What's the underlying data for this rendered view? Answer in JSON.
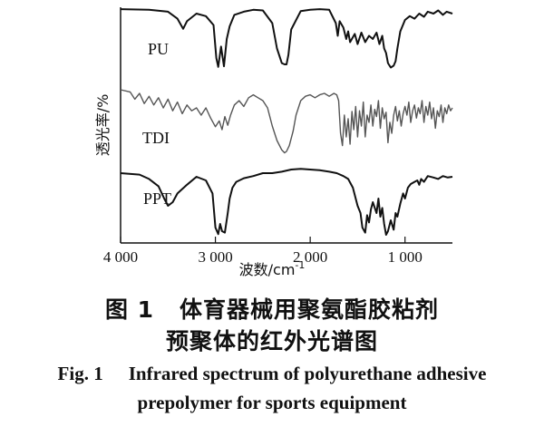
{
  "chart_data": {
    "type": "line",
    "xlabel": "波数/cm",
    "xlabel_sup": "-1",
    "ylabel": "透光率/%",
    "xlim": [
      4000,
      500
    ],
    "x_ticks": [
      4000,
      3000,
      2000,
      1000
    ],
    "x_tick_labels": [
      "4 000",
      "3 000",
      "2 000",
      "1 000"
    ],
    "y_units": "relative transmittance (offset, no scale)",
    "grid": false,
    "legend": "labels inline left of each trace",
    "series": [
      {
        "name": "PU",
        "x": [
          4000,
          3700,
          3500,
          3400,
          3340,
          3300,
          3200,
          3100,
          3020,
          2990,
          2970,
          2940,
          2910,
          2880,
          2850,
          2800,
          2700,
          2600,
          2500,
          2400,
          2350,
          2300,
          2270,
          2250,
          2230,
          2200,
          2100,
          2000,
          1900,
          1800,
          1730,
          1710,
          1690,
          1650,
          1620,
          1600,
          1580,
          1530,
          1500,
          1460,
          1420,
          1380,
          1340,
          1300,
          1270,
          1240,
          1220,
          1200,
          1180,
          1150,
          1120,
          1100,
          1080,
          1050,
          1000,
          950,
          900,
          850,
          800,
          760,
          700,
          650,
          600,
          560,
          500
        ],
        "y": [
          0.97,
          0.96,
          0.93,
          0.82,
          0.66,
          0.78,
          0.9,
          0.86,
          0.72,
          0.2,
          0.06,
          0.38,
          0.07,
          0.5,
          0.7,
          0.88,
          0.93,
          0.96,
          0.95,
          0.75,
          0.35,
          0.12,
          0.1,
          0.1,
          0.25,
          0.65,
          0.94,
          0.96,
          0.97,
          0.96,
          0.75,
          0.55,
          0.78,
          0.68,
          0.5,
          0.62,
          0.45,
          0.58,
          0.42,
          0.6,
          0.45,
          0.55,
          0.5,
          0.6,
          0.42,
          0.55,
          0.35,
          0.28,
          0.12,
          0.05,
          0.08,
          0.15,
          0.35,
          0.62,
          0.8,
          0.86,
          0.82,
          0.9,
          0.85,
          0.93,
          0.9,
          0.95,
          0.88,
          0.93,
          0.9
        ]
      },
      {
        "name": "TDI",
        "x": [
          4000,
          3900,
          3850,
          3800,
          3750,
          3700,
          3650,
          3600,
          3550,
          3500,
          3450,
          3400,
          3350,
          3300,
          3250,
          3200,
          3150,
          3100,
          3050,
          3000,
          2960,
          2930,
          2900,
          2870,
          2840,
          2800,
          2750,
          2700,
          2650,
          2600,
          2550,
          2500,
          2450,
          2400,
          2350,
          2300,
          2270,
          2250,
          2220,
          2180,
          2150,
          2100,
          2050,
          2000,
          1950,
          1900,
          1850,
          1800,
          1750,
          1720,
          1700,
          1680,
          1660,
          1640,
          1620,
          1600,
          1580,
          1560,
          1540,
          1520,
          1500,
          1480,
          1460,
          1440,
          1420,
          1400,
          1380,
          1360,
          1340,
          1320,
          1300,
          1280,
          1260,
          1240,
          1220,
          1200,
          1180,
          1160,
          1140,
          1120,
          1100,
          1080,
          1060,
          1040,
          1020,
          1000,
          980,
          960,
          940,
          920,
          900,
          880,
          860,
          840,
          820,
          800,
          780,
          760,
          740,
          720,
          700,
          680,
          660,
          640,
          620,
          600,
          580,
          560,
          540,
          520,
          500
        ],
        "y": [
          0.95,
          0.92,
          0.82,
          0.9,
          0.76,
          0.86,
          0.74,
          0.84,
          0.7,
          0.82,
          0.66,
          0.78,
          0.62,
          0.74,
          0.66,
          0.7,
          0.6,
          0.7,
          0.56,
          0.44,
          0.52,
          0.4,
          0.58,
          0.46,
          0.6,
          0.74,
          0.8,
          0.72,
          0.84,
          0.88,
          0.84,
          0.8,
          0.7,
          0.45,
          0.25,
          0.12,
          0.08,
          0.1,
          0.18,
          0.38,
          0.6,
          0.8,
          0.86,
          0.88,
          0.84,
          0.88,
          0.9,
          0.86,
          0.9,
          0.88,
          0.8,
          0.35,
          0.18,
          0.6,
          0.3,
          0.55,
          0.2,
          0.65,
          0.4,
          0.72,
          0.3,
          0.66,
          0.45,
          0.78,
          0.3,
          0.6,
          0.5,
          0.74,
          0.45,
          0.68,
          0.58,
          0.8,
          0.42,
          0.7,
          0.55,
          0.64,
          0.22,
          0.5,
          0.35,
          0.6,
          0.72,
          0.52,
          0.66,
          0.45,
          0.62,
          0.72,
          0.6,
          0.78,
          0.5,
          0.66,
          0.74,
          0.56,
          0.7,
          0.62,
          0.8,
          0.5,
          0.72,
          0.6,
          0.78,
          0.55,
          0.7,
          0.42,
          0.66,
          0.58,
          0.74,
          0.5,
          0.7,
          0.62,
          0.74,
          0.66,
          0.7
        ]
      },
      {
        "name": "PPT",
        "x": [
          4000,
          3800,
          3700,
          3600,
          3540,
          3500,
          3450,
          3400,
          3300,
          3200,
          3100,
          3030,
          3000,
          2970,
          2950,
          2930,
          2900,
          2870,
          2850,
          2820,
          2780,
          2700,
          2600,
          2500,
          2400,
          2300,
          2200,
          2100,
          2000,
          1900,
          1800,
          1720,
          1650,
          1600,
          1550,
          1500,
          1470,
          1450,
          1420,
          1400,
          1380,
          1360,
          1340,
          1300,
          1280,
          1260,
          1240,
          1220,
          1200,
          1180,
          1150,
          1120,
          1100,
          1080,
          1050,
          1020,
          1000,
          970,
          940,
          900,
          870,
          850,
          830,
          800,
          760,
          700,
          650,
          600,
          550,
          500
        ],
        "y": [
          0.9,
          0.88,
          0.82,
          0.72,
          0.55,
          0.45,
          0.5,
          0.62,
          0.74,
          0.85,
          0.8,
          0.62,
          0.15,
          0.06,
          0.2,
          0.1,
          0.08,
          0.35,
          0.55,
          0.7,
          0.78,
          0.83,
          0.86,
          0.9,
          0.9,
          0.92,
          0.95,
          0.96,
          0.95,
          0.94,
          0.92,
          0.9,
          0.86,
          0.82,
          0.7,
          0.45,
          0.35,
          0.15,
          0.08,
          0.32,
          0.22,
          0.4,
          0.5,
          0.35,
          0.55,
          0.3,
          0.42,
          0.2,
          0.05,
          0.1,
          0.25,
          0.12,
          0.35,
          0.3,
          0.48,
          0.62,
          0.55,
          0.7,
          0.75,
          0.78,
          0.8,
          0.74,
          0.82,
          0.78,
          0.86,
          0.84,
          0.82,
          0.86,
          0.84,
          0.85
        ]
      }
    ]
  },
  "caption": {
    "zh_line1_num": "图 1",
    "zh_line1_text": "体育器械用聚氨酯胶粘剂",
    "zh_line2": "预聚体的红外光谱图",
    "en_line1_num": "Fig. 1",
    "en_line1_text": "Infrared spectrum of polyurethane adhesive",
    "en_line2": "prepolymer for sports equipment"
  }
}
